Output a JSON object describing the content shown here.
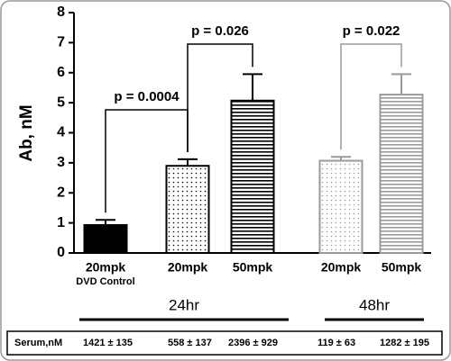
{
  "chart_data": {
    "type": "bar",
    "y_label": "Ab, nM",
    "categories": [
      "20mpk",
      "20mpk",
      "50mpk",
      "20mpk",
      "50mpk"
    ],
    "category_sublabels": [
      "DVD Control",
      null,
      null,
      null,
      null
    ],
    "values": [
      0.93,
      2.9,
      5.07,
      3.07,
      5.27
    ],
    "errors": [
      0.17,
      0.22,
      0.88,
      0.13,
      0.68
    ],
    "colors": [
      "#000000",
      "#000000",
      "#000000",
      "#9a9a9a",
      "#9a9a9a"
    ],
    "fills": [
      "solid",
      "dots",
      "stripes",
      "dots",
      "stripes"
    ],
    "ylim": [
      0,
      8
    ],
    "yticks": [
      0,
      1,
      2,
      3,
      4,
      5,
      6,
      7,
      8
    ],
    "annotations": [
      {
        "text": "p = 0.0004",
        "between": [
          0,
          1
        ]
      },
      {
        "text": "p = 0.026",
        "between": [
          1,
          2
        ]
      },
      {
        "text": "p = 0.022",
        "between": [
          3,
          4
        ]
      }
    ],
    "groups": [
      {
        "label": "24hr",
        "bars": [
          0,
          1,
          2
        ]
      },
      {
        "label": "48hr",
        "bars": [
          3,
          4
        ]
      }
    ],
    "serum_table": {
      "label": "Serum,nM",
      "values": [
        "1421 ± 135",
        "558 ± 137",
        "2396 ± 929",
        "119 ± 63",
        "1282 ± 195"
      ]
    }
  }
}
